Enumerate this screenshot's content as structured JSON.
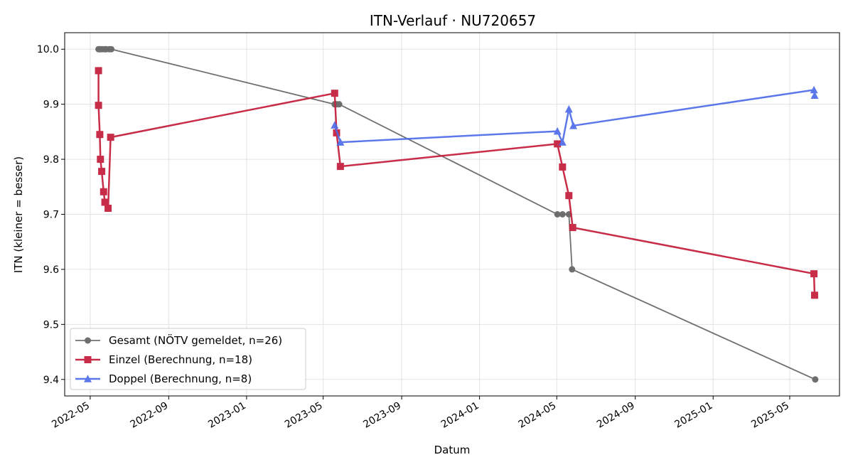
{
  "chart_data": {
    "type": "line",
    "title": "ITN-Verlauf · NU720657",
    "xlabel": "Datum",
    "ylabel": "ITN  (kleiner = besser)",
    "ylim": [
      9.37,
      10.03
    ],
    "yticks": [
      "9.4",
      "9.5",
      "9.6",
      "9.7",
      "9.8",
      "9.9",
      "10.0"
    ],
    "xlim": [
      "2022-03-22",
      "2025-07-18"
    ],
    "xticks": [
      "2022-05",
      "2022-09",
      "2023-01",
      "2023-05",
      "2023-09",
      "2024-01",
      "2024-05",
      "2024-09",
      "2025-01",
      "2025-05"
    ],
    "grid": true,
    "legend_position": "lower-left",
    "series": [
      {
        "name": "Gesamt (NÖTV gemeldet, n=26)",
        "color": "#333333",
        "marker": "circle",
        "points": [
          {
            "x": "2022-05-14",
            "y": 10.0
          },
          {
            "x": "2022-05-16",
            "y": 10.0
          },
          {
            "x": "2022-05-17",
            "y": 10.0
          },
          {
            "x": "2022-05-20",
            "y": 10.0
          },
          {
            "x": "2022-05-24",
            "y": 10.0
          },
          {
            "x": "2022-05-26",
            "y": 10.0
          },
          {
            "x": "2022-05-31",
            "y": 10.0
          },
          {
            "x": "2022-06-03",
            "y": 10.0
          },
          {
            "x": "2023-05-19",
            "y": 9.9
          },
          {
            "x": "2023-05-22",
            "y": 9.9
          },
          {
            "x": "2023-05-26",
            "y": 9.9
          },
          {
            "x": "2024-05-02",
            "y": 9.7
          },
          {
            "x": "2024-05-10",
            "y": 9.7
          },
          {
            "x": "2024-05-20",
            "y": 9.7
          },
          {
            "x": "2024-05-25",
            "y": 9.6
          },
          {
            "x": "2025-06-10",
            "y": 9.4
          }
        ]
      },
      {
        "name": "Einzel (Berechnung, n=18)",
        "color": "#c5223f",
        "marker": "square",
        "points": [
          {
            "x": "2022-05-14",
            "y": 9.961
          },
          {
            "x": "2022-05-14",
            "y": 9.898
          },
          {
            "x": "2022-05-16",
            "y": 9.845
          },
          {
            "x": "2022-05-17",
            "y": 9.8
          },
          {
            "x": "2022-05-19",
            "y": 9.778
          },
          {
            "x": "2022-05-22",
            "y": 9.741
          },
          {
            "x": "2022-05-24",
            "y": 9.722
          },
          {
            "x": "2022-05-29",
            "y": 9.711
          },
          {
            "x": "2022-06-02",
            "y": 9.84
          },
          {
            "x": "2023-05-19",
            "y": 9.92
          },
          {
            "x": "2023-05-22",
            "y": 9.848
          },
          {
            "x": "2023-05-28",
            "y": 9.787
          },
          {
            "x": "2024-05-02",
            "y": 9.828
          },
          {
            "x": "2024-05-10",
            "y": 9.786
          },
          {
            "x": "2024-05-20",
            "y": 9.734
          },
          {
            "x": "2024-05-26",
            "y": 9.676
          },
          {
            "x": "2025-06-08",
            "y": 9.592
          },
          {
            "x": "2025-06-09",
            "y": 9.553
          }
        ]
      },
      {
        "name": "Doppel (Berechnung, n=8)",
        "color": "#4a69e8",
        "marker": "triangle",
        "points": [
          {
            "x": "2023-05-19",
            "y": 9.862
          },
          {
            "x": "2023-05-28",
            "y": 9.831
          },
          {
            "x": "2024-05-02",
            "y": 9.851
          },
          {
            "x": "2024-05-10",
            "y": 9.831
          },
          {
            "x": "2024-05-20",
            "y": 9.891
          },
          {
            "x": "2024-05-27",
            "y": 9.861
          },
          {
            "x": "2025-06-08",
            "y": 9.926
          },
          {
            "x": "2025-06-09",
            "y": 9.916
          }
        ]
      }
    ]
  }
}
